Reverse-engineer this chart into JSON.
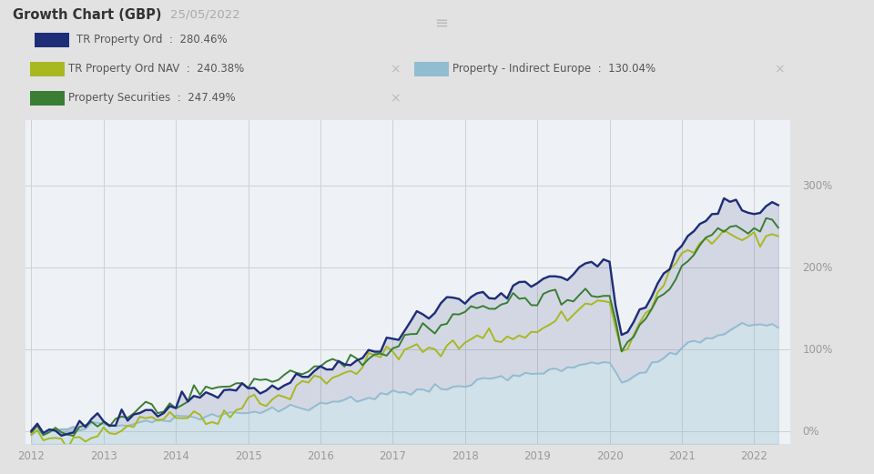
{
  "title": "Growth Chart (GBP)",
  "date": "25/05/2022",
  "bg_color": "#e2e2e2",
  "chart_bg_color": "#eef1f5",
  "series": [
    {
      "name": "TR Property Ord",
      "pct": "280.46%",
      "color": "#1e2d78",
      "final_value": 280.46
    },
    {
      "name": "TR Property Ord NAV",
      "pct": "240.38%",
      "color": "#a8b820",
      "final_value": 240.38
    },
    {
      "name": "Property - Indirect Europe",
      "pct": "130.04%",
      "color": "#90bdd0",
      "final_value": 130.04
    },
    {
      "name": "Property Securities",
      "pct": "247.49%",
      "color": "#3a7d34",
      "final_value": 247.49
    }
  ],
  "xlim": [
    2011.92,
    2022.5
  ],
  "ylim": [
    -15,
    380
  ],
  "yticks": [
    0,
    100,
    200,
    300
  ],
  "xticks": [
    2012,
    2013,
    2014,
    2015,
    2016,
    2017,
    2018,
    2019,
    2020,
    2021,
    2022
  ],
  "grid_color": "#d0d0d0",
  "tick_color": "#999999"
}
